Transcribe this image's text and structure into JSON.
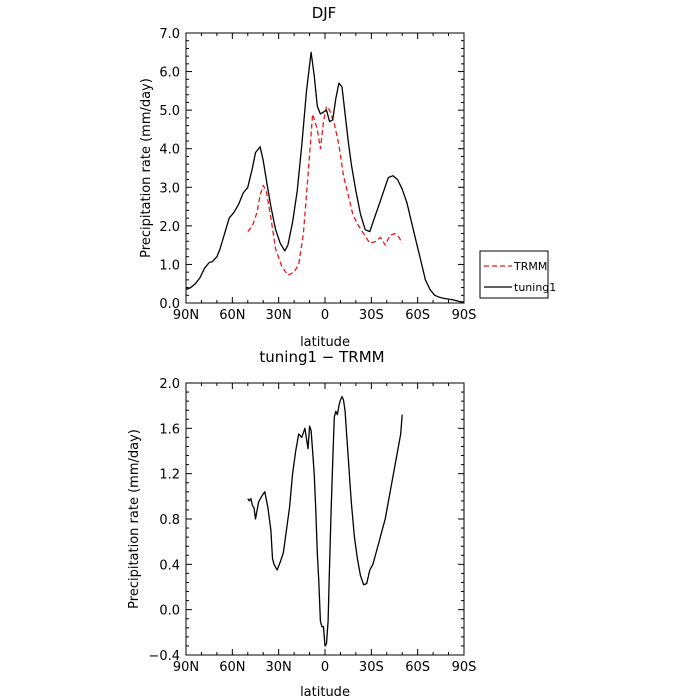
{
  "chart_data": [
    {
      "type": "line",
      "title": "DJF",
      "xlabel": "latitude",
      "ylabel": "Precipitation rate (mm/day)",
      "xlim": [
        90,
        -90
      ],
      "ylim": [
        0,
        7
      ],
      "x_ticks": [
        90,
        60,
        30,
        0,
        -30,
        -60,
        -90
      ],
      "x_tick_labels": [
        "90N",
        "60N",
        "30N",
        "0",
        "30S",
        "60S",
        "90S"
      ],
      "y_ticks": [
        0,
        1,
        2,
        3,
        4,
        5,
        6,
        7
      ],
      "y_tick_labels": [
        "0.0",
        "1.0",
        "2.0",
        "3.0",
        "4.0",
        "5.0",
        "6.0",
        "7.0"
      ],
      "grid": false,
      "legend_position": "outside-right",
      "series": [
        {
          "name": "TRMM",
          "color": "#e41a1c",
          "dash": "dashed",
          "x": [
            50,
            47,
            44,
            42,
            40,
            38,
            35,
            32,
            28,
            24,
            20,
            17,
            14,
            11,
            8,
            5,
            3,
            1,
            -1,
            -3,
            -6,
            -9,
            -12,
            -15,
            -18,
            -21,
            -25,
            -29,
            -33,
            -36,
            -39,
            -42,
            -45,
            -48,
            -50
          ],
          "y": [
            1.85,
            2.0,
            2.35,
            2.8,
            3.05,
            2.9,
            2.2,
            1.4,
            0.95,
            0.72,
            0.8,
            1.0,
            1.8,
            3.3,
            4.9,
            4.5,
            4.0,
            4.7,
            5.1,
            5.0,
            4.65,
            4.1,
            3.3,
            2.8,
            2.3,
            2.05,
            1.8,
            1.55,
            1.6,
            1.7,
            1.5,
            1.75,
            1.8,
            1.7,
            1.55
          ]
        },
        {
          "name": "tuning1",
          "color": "#000000",
          "dash": "solid",
          "x": [
            90,
            87,
            84,
            81,
            78,
            75,
            73,
            70,
            68,
            65,
            62,
            59,
            56,
            53,
            50,
            47,
            45,
            42,
            40,
            38,
            35,
            32,
            29,
            26,
            24,
            21,
            18,
            15,
            12,
            9,
            7,
            5,
            3,
            1,
            -1,
            -3,
            -5,
            -7,
            -9,
            -11,
            -13,
            -15,
            -17,
            -20,
            -23,
            -26,
            -29,
            -32,
            -35,
            -38,
            -41,
            -44,
            -47,
            -50,
            -53,
            -56,
            -59,
            -62,
            -65,
            -68,
            -71,
            -74,
            -77,
            -80,
            -83,
            -86,
            -88,
            -90
          ],
          "y": [
            0.35,
            0.4,
            0.5,
            0.65,
            0.9,
            1.05,
            1.07,
            1.2,
            1.4,
            1.8,
            2.2,
            2.35,
            2.55,
            2.85,
            3.0,
            3.5,
            3.9,
            4.05,
            3.7,
            3.2,
            2.5,
            1.9,
            1.55,
            1.35,
            1.5,
            2.1,
            2.9,
            4.1,
            5.5,
            6.5,
            5.9,
            5.1,
            4.9,
            4.95,
            5.0,
            4.7,
            4.75,
            5.3,
            5.7,
            5.6,
            4.9,
            4.2,
            3.6,
            2.9,
            2.3,
            1.9,
            1.85,
            2.2,
            2.55,
            2.9,
            3.25,
            3.3,
            3.2,
            2.95,
            2.6,
            2.1,
            1.6,
            1.1,
            0.6,
            0.35,
            0.2,
            0.15,
            0.12,
            0.1,
            0.08,
            0.05,
            0.03,
            0.02
          ]
        }
      ]
    },
    {
      "type": "line",
      "title": "tuning1 − TRMM",
      "xlabel": "latitude",
      "ylabel": "Precipitation rate (mm/day)",
      "xlim": [
        90,
        -90
      ],
      "ylim": [
        -0.4,
        2.0
      ],
      "x_ticks": [
        90,
        60,
        30,
        0,
        -30,
        -60,
        -90
      ],
      "x_tick_labels": [
        "90N",
        "60N",
        "30N",
        "0",
        "30S",
        "60S",
        "90S"
      ],
      "y_ticks": [
        -0.4,
        0.0,
        0.4,
        0.8,
        1.2,
        1.6,
        2.0
      ],
      "y_tick_labels": [
        "−0.4",
        "0.0",
        "0.4",
        "0.8",
        "1.2",
        "1.6",
        "2.0"
      ],
      "grid": false,
      "series": [
        {
          "color": "#000000",
          "dash": "solid",
          "x": [
            50,
            49,
            48,
            47,
            46,
            45,
            43,
            41,
            39,
            37,
            35,
            34,
            33,
            31,
            29,
            27,
            25,
            23,
            21,
            19,
            17,
            15,
            13,
            11,
            10,
            9,
            8,
            7,
            6,
            5,
            4,
            3,
            2,
            1,
            0,
            -1,
            -2,
            -3,
            -4,
            -5,
            -6,
            -7,
            -8,
            -9,
            -10,
            -11,
            -12,
            -13,
            -14,
            -15,
            -16,
            -17,
            -19,
            -21,
            -23,
            -25,
            -27,
            -29,
            -31,
            -33,
            -35,
            -37,
            -39,
            -41,
            -43,
            -45,
            -47,
            -49,
            -50
          ],
          "y": [
            0.98,
            0.96,
            0.98,
            0.92,
            0.9,
            0.8,
            0.95,
            1.0,
            1.04,
            0.9,
            0.7,
            0.45,
            0.4,
            0.35,
            0.42,
            0.5,
            0.7,
            0.9,
            1.2,
            1.4,
            1.55,
            1.52,
            1.6,
            1.42,
            1.62,
            1.58,
            1.4,
            1.2,
            0.9,
            0.5,
            0.25,
            -0.1,
            -0.15,
            -0.15,
            -0.32,
            -0.3,
            -0.1,
            0.4,
            0.9,
            1.3,
            1.7,
            1.75,
            1.72,
            1.8,
            1.85,
            1.88,
            1.85,
            1.75,
            1.55,
            1.35,
            1.15,
            0.95,
            0.65,
            0.45,
            0.3,
            0.22,
            0.23,
            0.35,
            0.4,
            0.5,
            0.6,
            0.7,
            0.8,
            0.95,
            1.1,
            1.25,
            1.4,
            1.55,
            1.72
          ]
        }
      ]
    }
  ]
}
